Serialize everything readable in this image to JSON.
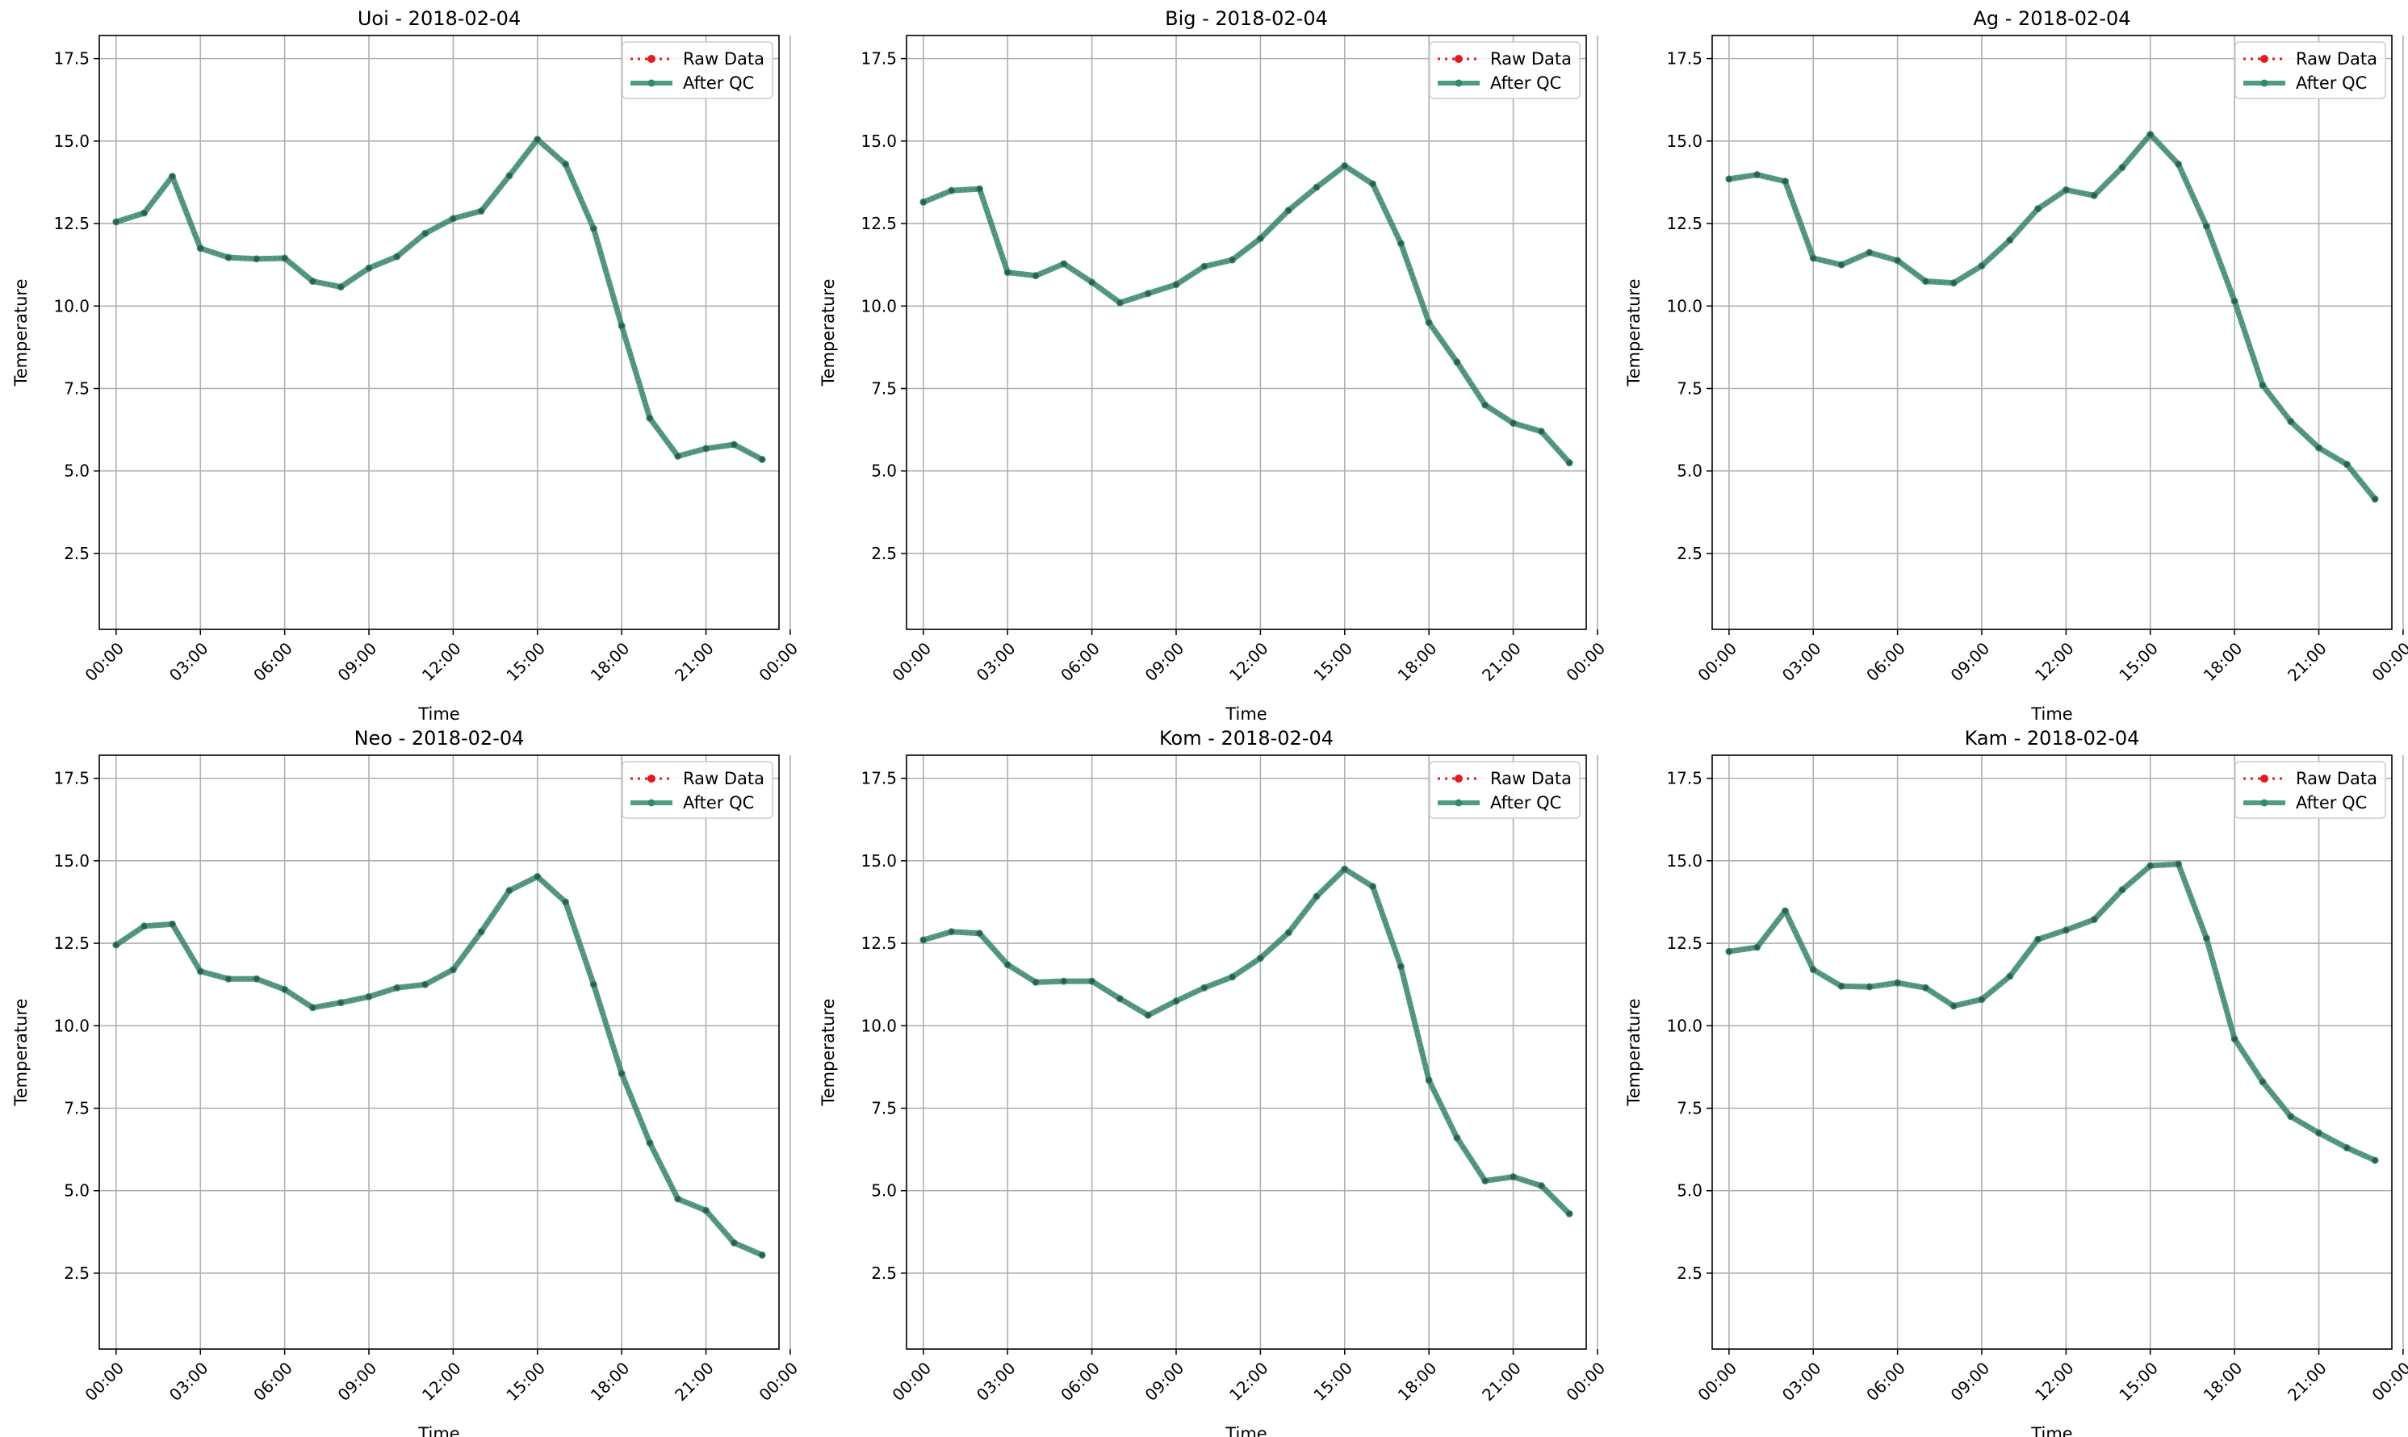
{
  "figure": {
    "raw_color": "#e41a1c",
    "qc_color": "#2e8b6e",
    "grid": true,
    "legend_placement": "top-right"
  },
  "chart_data": [
    {
      "type": "line",
      "title": "Uoi - 2018-02-04",
      "xlabel": "Time",
      "ylabel": "Temperature",
      "xlim": [
        -0.6,
        23.6
      ],
      "ylim": [
        0.2,
        18.2
      ],
      "x_ticks": [
        "00:00",
        "03:00",
        "06:00",
        "09:00",
        "12:00",
        "15:00",
        "18:00",
        "21:00",
        "00:00"
      ],
      "y_ticks": [
        "2.5",
        "5.0",
        "7.5",
        "10.0",
        "12.5",
        "15.0",
        "17.5"
      ],
      "legend": [
        "Raw Data",
        "After QC"
      ],
      "x": [
        0,
        1,
        2,
        3,
        4,
        5,
        6,
        7,
        8,
        9,
        10,
        11,
        12,
        13,
        14,
        15,
        16,
        17,
        18,
        19,
        20,
        21,
        22,
        23
      ],
      "series": [
        {
          "name": "Raw Data",
          "values": [
            12.55,
            12.82,
            13.93,
            11.75,
            11.47,
            11.43,
            11.45,
            10.75,
            10.58,
            11.15,
            11.5,
            12.2,
            12.65,
            12.88,
            13.95,
            15.05,
            14.3,
            12.35,
            9.4,
            6.6,
            5.45,
            5.68,
            5.8,
            5.35
          ]
        },
        {
          "name": "After QC",
          "values": [
            12.55,
            12.82,
            13.93,
            11.75,
            11.47,
            11.43,
            11.45,
            10.75,
            10.58,
            11.15,
            11.5,
            12.2,
            12.65,
            12.88,
            13.95,
            15.05,
            14.3,
            12.35,
            9.4,
            6.6,
            5.45,
            5.68,
            5.8,
            5.35
          ]
        }
      ]
    },
    {
      "type": "line",
      "title": "Big - 2018-02-04",
      "xlabel": "Time",
      "ylabel": "Temperature",
      "xlim": [
        -0.6,
        23.6
      ],
      "ylim": [
        0.2,
        18.2
      ],
      "x_ticks": [
        "00:00",
        "03:00",
        "06:00",
        "09:00",
        "12:00",
        "15:00",
        "18:00",
        "21:00",
        "00:00"
      ],
      "y_ticks": [
        "2.5",
        "5.0",
        "7.5",
        "10.0",
        "12.5",
        "15.0",
        "17.5"
      ],
      "legend": [
        "Raw Data",
        "After QC"
      ],
      "x": [
        0,
        1,
        2,
        3,
        4,
        5,
        6,
        7,
        8,
        9,
        10,
        11,
        12,
        13,
        14,
        15,
        16,
        17,
        18,
        19,
        20,
        21,
        22,
        23
      ],
      "series": [
        {
          "name": "Raw Data",
          "values": [
            13.15,
            13.5,
            13.55,
            11.02,
            10.92,
            11.28,
            10.72,
            10.1,
            10.38,
            10.65,
            11.2,
            11.4,
            12.05,
            12.9,
            13.6,
            14.25,
            13.7,
            11.9,
            9.5,
            8.3,
            7.0,
            6.45,
            6.2,
            5.25
          ]
        },
        {
          "name": "After QC",
          "values": [
            13.15,
            13.5,
            13.55,
            11.02,
            10.92,
            11.28,
            10.72,
            10.1,
            10.38,
            10.65,
            11.2,
            11.4,
            12.05,
            12.9,
            13.6,
            14.25,
            13.7,
            11.9,
            9.5,
            8.3,
            7.0,
            6.45,
            6.2,
            5.25
          ]
        }
      ]
    },
    {
      "type": "line",
      "title": "Ag - 2018-02-04",
      "xlabel": "Time",
      "ylabel": "Temperature",
      "xlim": [
        -0.6,
        23.6
      ],
      "ylim": [
        0.2,
        18.2
      ],
      "x_ticks": [
        "00:00",
        "03:00",
        "06:00",
        "09:00",
        "12:00",
        "15:00",
        "18:00",
        "21:00",
        "00:00"
      ],
      "y_ticks": [
        "2.5",
        "5.0",
        "7.5",
        "10.0",
        "12.5",
        "15.0",
        "17.5"
      ],
      "legend": [
        "Raw Data",
        "After QC"
      ],
      "x": [
        0,
        1,
        2,
        3,
        4,
        5,
        6,
        7,
        8,
        9,
        10,
        11,
        12,
        13,
        14,
        15,
        16,
        17,
        18,
        19,
        20,
        21,
        22,
        23
      ],
      "series": [
        {
          "name": "Raw Data",
          "values": [
            13.85,
            13.98,
            13.78,
            11.45,
            11.25,
            11.62,
            11.38,
            10.75,
            10.7,
            11.22,
            12.0,
            12.95,
            13.52,
            13.35,
            14.2,
            15.2,
            14.3,
            12.42,
            10.15,
            7.6,
            6.5,
            5.7,
            5.2,
            4.15
          ]
        },
        {
          "name": "After QC",
          "values": [
            13.85,
            13.98,
            13.78,
            11.45,
            11.25,
            11.62,
            11.38,
            10.75,
            10.7,
            11.22,
            12.0,
            12.95,
            13.52,
            13.35,
            14.2,
            15.2,
            14.3,
            12.42,
            10.15,
            7.6,
            6.5,
            5.7,
            5.2,
            4.15
          ]
        }
      ]
    },
    {
      "type": "line",
      "title": "Neo - 2018-02-04",
      "xlabel": "Time",
      "ylabel": "Temperature",
      "xlim": [
        -0.6,
        23.6
      ],
      "ylim": [
        0.2,
        18.2
      ],
      "x_ticks": [
        "00:00",
        "03:00",
        "06:00",
        "09:00",
        "12:00",
        "15:00",
        "18:00",
        "21:00",
        "00:00"
      ],
      "y_ticks": [
        "2.5",
        "5.0",
        "7.5",
        "10.0",
        "12.5",
        "15.0",
        "17.5"
      ],
      "legend": [
        "Raw Data",
        "After QC"
      ],
      "x": [
        0,
        1,
        2,
        3,
        4,
        5,
        6,
        7,
        8,
        9,
        10,
        11,
        12,
        13,
        14,
        15,
        16,
        17,
        18,
        19,
        20,
        21,
        22,
        23
      ],
      "series": [
        {
          "name": "Raw Data",
          "values": [
            12.45,
            13.02,
            13.08,
            11.65,
            11.42,
            11.42,
            11.1,
            10.55,
            10.7,
            10.88,
            11.15,
            11.25,
            11.7,
            12.85,
            14.1,
            14.52,
            13.75,
            11.25,
            8.55,
            6.45,
            4.75,
            4.4,
            3.42,
            3.05
          ]
        },
        {
          "name": "After QC",
          "values": [
            12.45,
            13.02,
            13.08,
            11.65,
            11.42,
            11.42,
            11.1,
            10.55,
            10.7,
            10.88,
            11.15,
            11.25,
            11.7,
            12.85,
            14.1,
            14.52,
            13.75,
            11.25,
            8.55,
            6.45,
            4.75,
            4.4,
            3.42,
            3.05
          ]
        }
      ]
    },
    {
      "type": "line",
      "title": "Kom - 2018-02-04",
      "xlabel": "Time",
      "ylabel": "Temperature",
      "xlim": [
        -0.6,
        23.6
      ],
      "ylim": [
        0.2,
        18.2
      ],
      "x_ticks": [
        "00:00",
        "03:00",
        "06:00",
        "09:00",
        "12:00",
        "15:00",
        "18:00",
        "21:00",
        "00:00"
      ],
      "y_ticks": [
        "2.5",
        "5.0",
        "7.5",
        "10.0",
        "12.5",
        "15.0",
        "17.5"
      ],
      "legend": [
        "Raw Data",
        "After QC"
      ],
      "x": [
        0,
        1,
        2,
        3,
        4,
        5,
        6,
        7,
        8,
        9,
        10,
        11,
        12,
        13,
        14,
        15,
        16,
        17,
        18,
        19,
        20,
        21,
        22,
        23
      ],
      "series": [
        {
          "name": "Raw Data",
          "values": [
            12.6,
            12.85,
            12.8,
            11.85,
            11.32,
            11.35,
            11.35,
            10.82,
            10.32,
            10.75,
            11.15,
            11.48,
            12.05,
            12.82,
            13.92,
            14.75,
            14.22,
            11.8,
            8.35,
            6.6,
            5.3,
            5.42,
            5.15,
            4.3
          ]
        },
        {
          "name": "After QC",
          "values": [
            12.6,
            12.85,
            12.8,
            11.85,
            11.32,
            11.35,
            11.35,
            10.82,
            10.32,
            10.75,
            11.15,
            11.48,
            12.05,
            12.82,
            13.92,
            14.75,
            14.22,
            11.8,
            8.35,
            6.6,
            5.3,
            5.42,
            5.15,
            4.3
          ]
        }
      ]
    },
    {
      "type": "line",
      "title": "Kam - 2018-02-04",
      "xlabel": "Time",
      "ylabel": "Temperature",
      "xlim": [
        -0.6,
        23.6
      ],
      "ylim": [
        0.2,
        18.2
      ],
      "x_ticks": [
        "00:00",
        "03:00",
        "06:00",
        "09:00",
        "12:00",
        "15:00",
        "18:00",
        "21:00",
        "00:00"
      ],
      "y_ticks": [
        "2.5",
        "5.0",
        "7.5",
        "10.0",
        "12.5",
        "15.0",
        "17.5"
      ],
      "legend": [
        "Raw Data",
        "After QC"
      ],
      "x": [
        0,
        1,
        2,
        3,
        4,
        5,
        6,
        7,
        8,
        9,
        10,
        11,
        12,
        13,
        14,
        15,
        16,
        17,
        18,
        19,
        20,
        21,
        22,
        23
      ],
      "series": [
        {
          "name": "Raw Data",
          "values": [
            12.25,
            12.38,
            13.48,
            11.7,
            11.2,
            11.18,
            11.3,
            11.15,
            10.6,
            10.8,
            11.5,
            12.62,
            12.9,
            13.22,
            14.12,
            14.85,
            14.9,
            12.65,
            9.6,
            8.3,
            7.25,
            6.75,
            6.3,
            5.92
          ]
        },
        {
          "name": "After QC",
          "values": [
            12.25,
            12.38,
            13.48,
            11.7,
            11.2,
            11.18,
            11.3,
            11.15,
            10.6,
            10.8,
            11.5,
            12.62,
            12.9,
            13.22,
            14.12,
            14.85,
            14.9,
            12.65,
            9.6,
            8.3,
            7.25,
            6.75,
            6.3,
            5.92
          ]
        }
      ]
    }
  ]
}
